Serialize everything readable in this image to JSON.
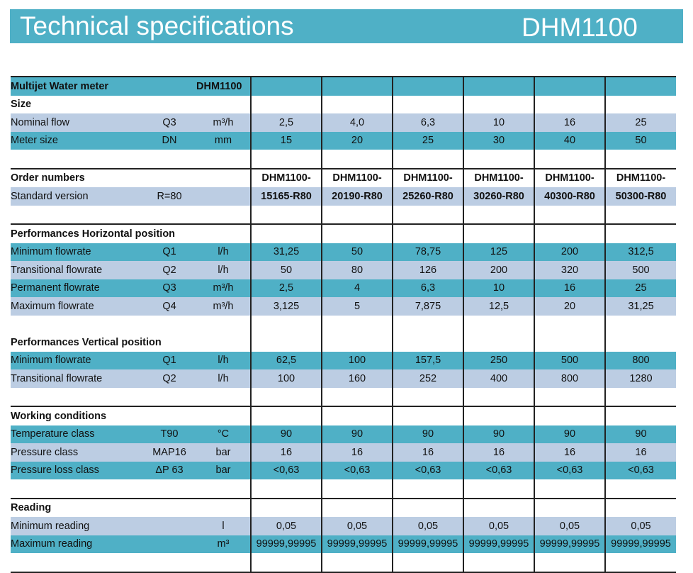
{
  "banner": {
    "title": "Technical specifications",
    "model": "DHM1100"
  },
  "colors": {
    "accent_blue": "#4fb0c6",
    "accent_gray": "#bccde3"
  },
  "table": {
    "header": {
      "label": "Multijet Water meter",
      "model": "DHM1100"
    },
    "size_heading": "Size",
    "nominal_flow": {
      "label": "Nominal flow",
      "symbol": "Q3",
      "unit": "m³/h",
      "values": [
        "2,5",
        "4,0",
        "6,3",
        "10",
        "16",
        "25"
      ]
    },
    "meter_size": {
      "label": "Meter size",
      "symbol": "DN",
      "unit": "mm",
      "values": [
        "15",
        "20",
        "25",
        "30",
        "40",
        "50"
      ]
    },
    "order_numbers": {
      "heading": "Order numbers",
      "prefix": [
        "DHM1100-",
        "DHM1100-",
        "DHM1100-",
        "DHM1100-",
        "DHM1100-",
        "DHM1100-"
      ],
      "standard": {
        "label": "Standard version",
        "symbol": "R=80",
        "codes": [
          "15165-R80",
          "20190-R80",
          "25260-R80",
          "30260-R80",
          "40300-R80",
          "50300-R80"
        ]
      }
    },
    "horizontal": {
      "heading": "Performances Horizontal position",
      "rows": [
        {
          "label": "Minimum flowrate",
          "symbol": "Q1",
          "unit": "l/h",
          "values": [
            "31,25",
            "50",
            "78,75",
            "125",
            "200",
            "312,5"
          ]
        },
        {
          "label": "Transitional flowrate",
          "symbol": "Q2",
          "unit": "l/h",
          "values": [
            "50",
            "80",
            "126",
            "200",
            "320",
            "500"
          ]
        },
        {
          "label": "Permanent flowrate",
          "symbol": "Q3",
          "unit": "m³/h",
          "values": [
            "2,5",
            "4",
            "6,3",
            "10",
            "16",
            "25"
          ]
        },
        {
          "label": "Maximum flowrate",
          "symbol": "Q4",
          "unit": "m³/h",
          "values": [
            "3,125",
            "5",
            "7,875",
            "12,5",
            "20",
            "31,25"
          ]
        }
      ]
    },
    "vertical": {
      "heading": "Performances Vertical position",
      "rows": [
        {
          "label": "Minimum flowrate",
          "symbol": "Q1",
          "unit": "l/h",
          "values": [
            "62,5",
            "100",
            "157,5",
            "250",
            "500",
            "800"
          ]
        },
        {
          "label": "Transitional flowrate",
          "symbol": "Q2",
          "unit": "l/h",
          "values": [
            "100",
            "160",
            "252",
            "400",
            "800",
            "1280"
          ]
        }
      ]
    },
    "working": {
      "heading": "Working conditions",
      "rows": [
        {
          "label": "Temperature class",
          "symbol": "T90",
          "unit": "°C",
          "values": [
            "90",
            "90",
            "90",
            "90",
            "90",
            "90"
          ]
        },
        {
          "label": "Pressure class",
          "symbol": "MAP16",
          "unit": "bar",
          "values": [
            "16",
            "16",
            "16",
            "16",
            "16",
            "16"
          ]
        },
        {
          "label": "Pressure loss class",
          "symbol": "ΔP 63",
          "unit": "bar",
          "values": [
            "<0,63",
            "<0,63",
            "<0,63",
            "<0,63",
            "<0,63",
            "<0,63"
          ]
        }
      ]
    },
    "reading": {
      "heading": "Reading",
      "rows": [
        {
          "label": "Minimum reading",
          "unit": "l",
          "values": [
            "0,05",
            "0,05",
            "0,05",
            "0,05",
            "0,05",
            "0,05"
          ]
        },
        {
          "label": "Maximum reading",
          "unit": "m³",
          "values": [
            "99999,99995",
            "99999,99995",
            "99999,99995",
            "99999,99995",
            "99999,99995",
            "99999,99995"
          ]
        }
      ]
    }
  }
}
